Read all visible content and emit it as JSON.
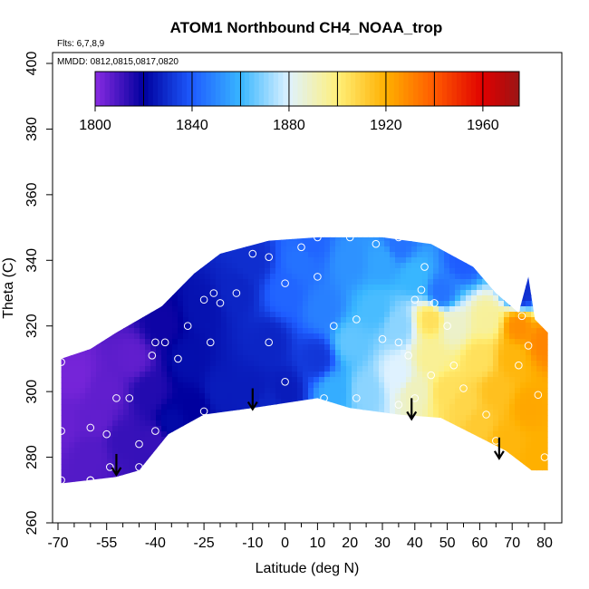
{
  "chart_data": {
    "type": "heatmap",
    "title": "ATOM1 Northbound CH4_NOAA_trop",
    "flights_note": "Flts: 6,7,8,9",
    "dates_note": "MMDD: 0812,0815,0817,0820",
    "xlabel": "Latitude (deg N)",
    "ylabel": "Theta (C)",
    "xlim": [
      -70,
      82
    ],
    "ylim": [
      260,
      404
    ],
    "x_ticks_major": [
      -70,
      -55,
      -40,
      -25,
      -10,
      0,
      10,
      20,
      30,
      40,
      50,
      60,
      70,
      80
    ],
    "x_tick_labels": [
      "-70",
      "-55",
      "-40",
      "-25",
      "-10",
      "0",
      "10",
      "20",
      "30",
      "40",
      "50",
      "60",
      "70",
      "80"
    ],
    "x_ticks_minor": [
      -65,
      -60,
      -50,
      -45,
      -35,
      -30,
      -20,
      -15,
      -5,
      5,
      15,
      25,
      35,
      45,
      55,
      65,
      75
    ],
    "y_ticks": [
      260,
      280,
      300,
      320,
      340,
      360,
      380,
      400
    ],
    "y_tick_labels": [
      "260",
      "280",
      "300",
      "320",
      "340",
      "360",
      "380",
      "400"
    ],
    "colorbar": {
      "min": 1800,
      "max": 1975,
      "step": 20,
      "tick_values": [
        1800,
        1840,
        1880,
        1920,
        1960
      ],
      "tick_labels": [
        "1800",
        "1840",
        "1880",
        "1920",
        "1960"
      ],
      "stops": [
        {
          "v": 1800,
          "color": "#8a2be2"
        },
        {
          "v": 1820,
          "color": "#00009e"
        },
        {
          "v": 1840,
          "color": "#1e5cff"
        },
        {
          "v": 1860,
          "color": "#38b6ff"
        },
        {
          "v": 1880,
          "color": "#dff2ff"
        },
        {
          "v": 1900,
          "color": "#fff07a"
        },
        {
          "v": 1920,
          "color": "#ffb000"
        },
        {
          "v": 1940,
          "color": "#ff5a00"
        },
        {
          "v": 1960,
          "color": "#e00000"
        },
        {
          "v": 1975,
          "color": "#9a1515"
        }
      ]
    },
    "curtain_bottom": [
      [
        -69,
        272
      ],
      [
        -52,
        274
      ],
      [
        -45,
        276
      ],
      [
        -36,
        287
      ],
      [
        -25,
        293
      ],
      [
        -10,
        295
      ],
      [
        10,
        298
      ],
      [
        20,
        295
      ],
      [
        35,
        293
      ],
      [
        48,
        292
      ],
      [
        68,
        282
      ],
      [
        76,
        276
      ],
      [
        81,
        276
      ]
    ],
    "curtain_top": [
      [
        -69,
        310
      ],
      [
        -60,
        313
      ],
      [
        -52,
        318
      ],
      [
        -45,
        322
      ],
      [
        -38,
        326
      ],
      [
        -32,
        332
      ],
      [
        -28,
        336
      ],
      [
        -20,
        342
      ],
      [
        -5,
        346
      ],
      [
        10,
        347
      ],
      [
        30,
        347
      ],
      [
        45,
        345
      ],
      [
        58,
        338
      ],
      [
        65,
        330
      ],
      [
        72,
        324
      ],
      [
        75,
        335
      ],
      [
        77,
        322
      ],
      [
        81,
        318
      ]
    ],
    "field": [
      [
        -69,
        290,
        1805
      ],
      [
        -60,
        280,
        1808
      ],
      [
        -55,
        300,
        1806
      ],
      [
        -50,
        285,
        1812
      ],
      [
        -47,
        310,
        1806
      ],
      [
        -42,
        300,
        1815
      ],
      [
        -38,
        320,
        1818
      ],
      [
        -35,
        290,
        1822
      ],
      [
        -30,
        310,
        1823
      ],
      [
        -25,
        325,
        1824
      ],
      [
        -20,
        300,
        1826
      ],
      [
        -15,
        330,
        1828
      ],
      [
        -10,
        300,
        1826
      ],
      [
        -10,
        340,
        1830
      ],
      [
        -5,
        315,
        1828
      ],
      [
        0,
        300,
        1826
      ],
      [
        0,
        330,
        1842
      ],
      [
        5,
        340,
        1845
      ],
      [
        10,
        310,
        1832
      ],
      [
        12,
        325,
        1848
      ],
      [
        15,
        300,
        1858
      ],
      [
        20,
        315,
        1865
      ],
      [
        20,
        340,
        1852
      ],
      [
        25,
        300,
        1870
      ],
      [
        28,
        325,
        1862
      ],
      [
        30,
        340,
        1856
      ],
      [
        35,
        305,
        1880
      ],
      [
        35,
        320,
        1870
      ],
      [
        40,
        300,
        1890
      ],
      [
        40,
        335,
        1860
      ],
      [
        45,
        310,
        1896
      ],
      [
        48,
        330,
        1845
      ],
      [
        50,
        300,
        1905
      ],
      [
        52,
        320,
        1888
      ],
      [
        55,
        340,
        1840
      ],
      [
        60,
        290,
        1912
      ],
      [
        60,
        310,
        1905
      ],
      [
        62,
        322,
        1895
      ],
      [
        65,
        300,
        1915
      ],
      [
        68,
        285,
        1918
      ],
      [
        70,
        310,
        1918
      ],
      [
        72,
        320,
        1928
      ],
      [
        75,
        295,
        1922
      ],
      [
        78,
        280,
        1920
      ],
      [
        80,
        315,
        1930
      ],
      [
        -65,
        305,
        1803
      ],
      [
        -58,
        292,
        1806
      ],
      [
        -28,
        295,
        1820
      ],
      [
        -5,
        296,
        1828
      ],
      [
        55,
        296,
        1908
      ],
      [
        73,
        330,
        1830
      ],
      [
        45,
        322,
        1905
      ],
      [
        -40,
        285,
        1812
      ],
      [
        8,
        345,
        1842
      ],
      [
        35,
        345,
        1845
      ]
    ],
    "observations": [
      [
        -69,
        309
      ],
      [
        -69,
        288
      ],
      [
        -69,
        273
      ],
      [
        -60,
        289
      ],
      [
        -60,
        273
      ],
      [
        -55,
        287
      ],
      [
        -54,
        277
      ],
      [
        -52,
        298
      ],
      [
        -48,
        298
      ],
      [
        -45,
        277
      ],
      [
        -45,
        284
      ],
      [
        -40,
        288
      ],
      [
        -41,
        311
      ],
      [
        -40,
        315
      ],
      [
        -37,
        315
      ],
      [
        -33,
        310
      ],
      [
        -30,
        320
      ],
      [
        -25,
        328
      ],
      [
        -22,
        330
      ],
      [
        -20,
        327
      ],
      [
        -23,
        315
      ],
      [
        -25,
        294
      ],
      [
        -15,
        330
      ],
      [
        -10,
        342
      ],
      [
        -5,
        341
      ],
      [
        -5,
        315
      ],
      [
        0,
        333
      ],
      [
        5,
        344
      ],
      [
        10,
        347
      ],
      [
        20,
        347
      ],
      [
        28,
        345
      ],
      [
        35,
        347
      ],
      [
        0,
        303
      ],
      [
        10,
        335
      ],
      [
        12,
        298
      ],
      [
        15,
        320
      ],
      [
        22,
        322
      ],
      [
        30,
        316
      ],
      [
        35,
        315
      ],
      [
        38,
        311
      ],
      [
        40,
        328
      ],
      [
        42,
        331
      ],
      [
        43,
        338
      ],
      [
        46,
        327
      ],
      [
        50,
        320
      ],
      [
        45,
        305
      ],
      [
        40,
        298
      ],
      [
        22,
        298
      ],
      [
        35,
        296
      ],
      [
        -60,
        273
      ],
      [
        62,
        293
      ],
      [
        65,
        285
      ],
      [
        68,
        278
      ],
      [
        70,
        278
      ],
      [
        72,
        308
      ],
      [
        73,
        323
      ],
      [
        75,
        314
      ],
      [
        78,
        299
      ],
      [
        80,
        280
      ],
      [
        52,
        308
      ],
      [
        55,
        301
      ]
    ],
    "arrows": [
      [
        -52,
        281
      ],
      [
        -10,
        301
      ],
      [
        39,
        298
      ],
      [
        66,
        286
      ]
    ]
  }
}
